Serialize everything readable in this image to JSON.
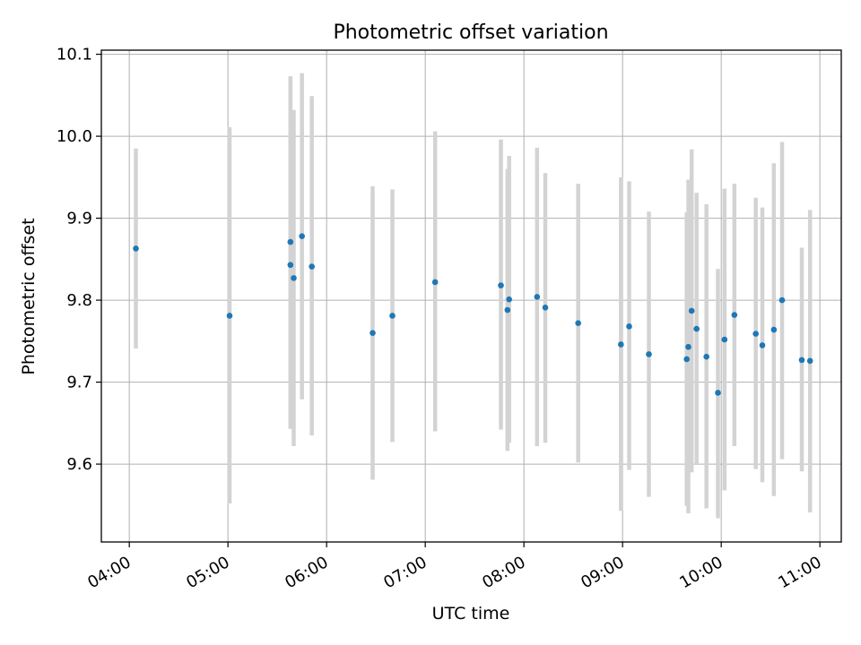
{
  "colors": {
    "marker": "#1f77b4",
    "errorbar": "#d3d3d3",
    "grid": "#b0b0b0",
    "axes": "#000000"
  },
  "chart_data": {
    "type": "scatter",
    "title": "Photometric offset variation",
    "xlabel": "UTC time",
    "ylabel": "Photometric offset",
    "x_unit": "UTC hours",
    "xlim": [
      "03:43",
      "11:13"
    ],
    "ylim": [
      9.505,
      10.105
    ],
    "grid": true,
    "legend": "none",
    "x_ticks": [
      "04:00",
      "05:00",
      "06:00",
      "07:00",
      "08:00",
      "09:00",
      "10:00",
      "11:00"
    ],
    "y_ticks": [
      "9.6",
      "9.7",
      "9.8",
      "9.9",
      "10.0",
      "10.1"
    ],
    "series": [
      {
        "marker": "point",
        "errorbars": "vertical",
        "points": [
          {
            "x": "04:04",
            "y": 9.863,
            "ylow": 9.741,
            "yhigh": 9.985
          },
          {
            "x": "05:01",
            "y": 9.781,
            "ylow": 9.552,
            "yhigh": 10.011
          },
          {
            "x": "05:38",
            "y": 9.871,
            "ylow": 9.643,
            "yhigh": 10.073
          },
          {
            "x": "05:38",
            "y": 9.843,
            "ylow": 9.653,
            "yhigh": 10.073
          },
          {
            "x": "05:40",
            "y": 9.827,
            "ylow": 9.622,
            "yhigh": 10.032
          },
          {
            "x": "05:45",
            "y": 9.878,
            "ylow": 9.679,
            "yhigh": 10.077
          },
          {
            "x": "05:51",
            "y": 9.841,
            "ylow": 9.635,
            "yhigh": 10.049
          },
          {
            "x": "06:28",
            "y": 9.76,
            "ylow": 9.581,
            "yhigh": 9.939
          },
          {
            "x": "06:40",
            "y": 9.781,
            "ylow": 9.627,
            "yhigh": 9.935
          },
          {
            "x": "07:06",
            "y": 9.822,
            "ylow": 9.64,
            "yhigh": 10.006
          },
          {
            "x": "07:46",
            "y": 9.818,
            "ylow": 9.642,
            "yhigh": 9.996
          },
          {
            "x": "07:50",
            "y": 9.788,
            "ylow": 9.616,
            "yhigh": 9.96
          },
          {
            "x": "07:51",
            "y": 9.801,
            "ylow": 9.626,
            "yhigh": 9.976
          },
          {
            "x": "08:08",
            "y": 9.804,
            "ylow": 9.622,
            "yhigh": 9.986
          },
          {
            "x": "08:13",
            "y": 9.791,
            "ylow": 9.626,
            "yhigh": 9.955
          },
          {
            "x": "08:33",
            "y": 9.772,
            "ylow": 9.602,
            "yhigh": 9.942
          },
          {
            "x": "08:59",
            "y": 9.746,
            "ylow": 9.543,
            "yhigh": 9.95
          },
          {
            "x": "09:04",
            "y": 9.768,
            "ylow": 9.593,
            "yhigh": 9.945
          },
          {
            "x": "09:16",
            "y": 9.734,
            "ylow": 9.56,
            "yhigh": 9.908
          },
          {
            "x": "09:39",
            "y": 9.728,
            "ylow": 9.549,
            "yhigh": 9.907
          },
          {
            "x": "09:40",
            "y": 9.743,
            "ylow": 9.54,
            "yhigh": 9.947
          },
          {
            "x": "09:42",
            "y": 9.787,
            "ylow": 9.59,
            "yhigh": 9.984
          },
          {
            "x": "09:45",
            "y": 9.765,
            "ylow": 9.599,
            "yhigh": 9.931
          },
          {
            "x": "09:51",
            "y": 9.731,
            "ylow": 9.546,
            "yhigh": 9.917
          },
          {
            "x": "09:58",
            "y": 9.687,
            "ylow": 9.534,
            "yhigh": 9.838
          },
          {
            "x": "10:02",
            "y": 9.752,
            "ylow": 9.568,
            "yhigh": 9.936
          },
          {
            "x": "10:08",
            "y": 9.782,
            "ylow": 9.622,
            "yhigh": 9.942
          },
          {
            "x": "10:21",
            "y": 9.759,
            "ylow": 9.594,
            "yhigh": 9.925
          },
          {
            "x": "10:25",
            "y": 9.745,
            "ylow": 9.578,
            "yhigh": 9.913
          },
          {
            "x": "10:32",
            "y": 9.764,
            "ylow": 9.561,
            "yhigh": 9.967
          },
          {
            "x": "10:37",
            "y": 9.8,
            "ylow": 9.606,
            "yhigh": 9.993
          },
          {
            "x": "10:49",
            "y": 9.727,
            "ylow": 9.591,
            "yhigh": 9.864
          },
          {
            "x": "10:54",
            "y": 9.726,
            "ylow": 9.541,
            "yhigh": 9.91
          }
        ]
      }
    ]
  }
}
